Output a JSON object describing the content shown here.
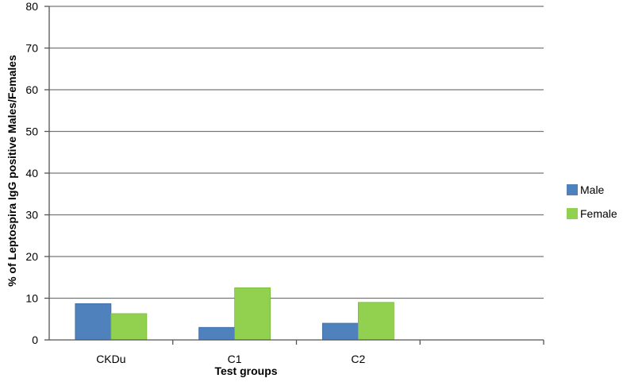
{
  "chart_data": {
    "type": "bar",
    "title": "",
    "xlabel": "Test groups",
    "ylabel": "% of Leptospira IgG positive Males/Females",
    "categories": [
      "CKDu",
      "C1",
      "C2",
      ""
    ],
    "series": [
      {
        "name": "Male",
        "values": [
          8.7,
          3.0,
          4.0,
          null
        ],
        "color": "#4f81bd"
      },
      {
        "name": "Female",
        "values": [
          6.3,
          12.5,
          9.0,
          null
        ],
        "color": "#92d050"
      }
    ],
    "ylim": [
      0,
      80
    ],
    "yticks": [
      "0",
      "10",
      "20",
      "30",
      "40",
      "50",
      "60",
      "70",
      "80"
    ],
    "grid": true,
    "legend_position": "right"
  }
}
